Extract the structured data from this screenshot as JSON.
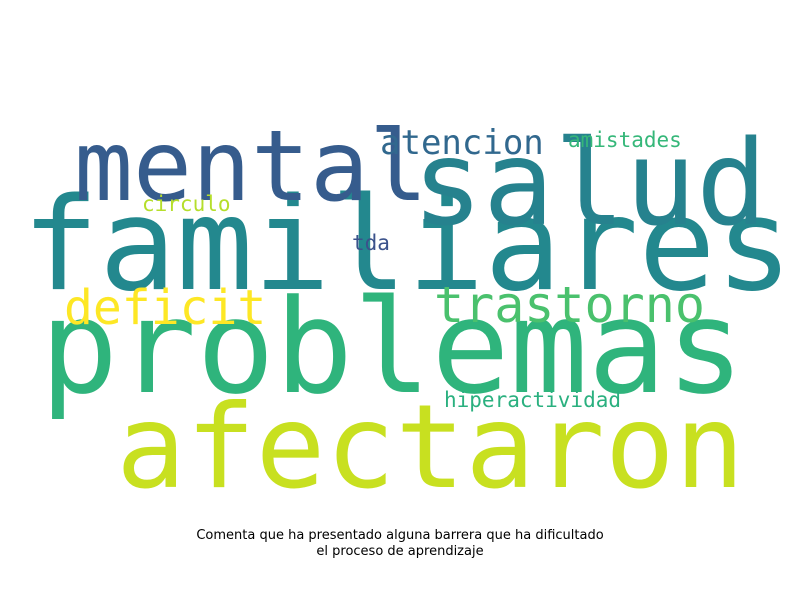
{
  "words": [
    {
      "key": "familiares",
      "text": "familiares",
      "color": "#23888e"
    },
    {
      "key": "problemas",
      "text": "problemas",
      "color": "#2fb47c"
    },
    {
      "key": "salud",
      "text": "salud",
      "color": "#26828e"
    },
    {
      "key": "mental",
      "text": "mental",
      "color": "#365c8d"
    },
    {
      "key": "afectaron",
      "text": "afectaron",
      "color": "#c8e020"
    },
    {
      "key": "trastorno",
      "text": "trastorno",
      "color": "#4ac16d"
    },
    {
      "key": "deficit",
      "text": "deficit",
      "color": "#fde725"
    },
    {
      "key": "atencion",
      "text": "atencion",
      "color": "#31688e"
    },
    {
      "key": "amistades",
      "text": "amistades",
      "color": "#35b779"
    },
    {
      "key": "circulo",
      "text": "circulo",
      "color": "#b5de2b"
    },
    {
      "key": "tda",
      "text": "tda",
      "color": "#3b528b"
    },
    {
      "key": "hiperactividad",
      "text": "hiperactividad",
      "color": "#2ab07f"
    }
  ],
  "caption": {
    "line1": "Comenta que ha presentado alguna barrera que ha dificultado",
    "line2": "el proceso de aprendizaje"
  }
}
